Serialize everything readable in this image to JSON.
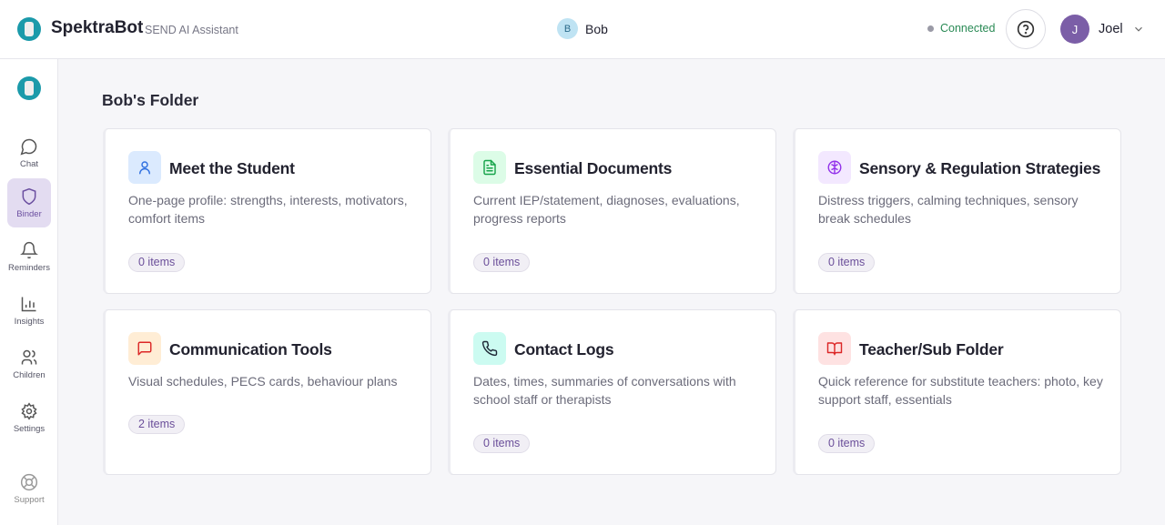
{
  "header": {
    "brand": "SpektraBot",
    "subtitle": "SEND AI Assistant",
    "student_initial": "B",
    "student_name": "Bob",
    "status": "Connected",
    "user_initial": "J",
    "user_name": "Joel"
  },
  "sidebar": {
    "items": [
      {
        "label": "Chat",
        "icon": "chat-icon"
      },
      {
        "label": "Binder",
        "icon": "shield-icon",
        "active": true
      },
      {
        "label": "Reminders",
        "icon": "bell-icon"
      },
      {
        "label": "Insights",
        "icon": "bar-chart-icon"
      },
      {
        "label": "Children",
        "icon": "users-icon"
      },
      {
        "label": "Settings",
        "icon": "gear-icon"
      },
      {
        "label": "Support",
        "icon": "lifebuoy-icon"
      }
    ]
  },
  "main": {
    "title": "Bob's Folder",
    "cards": [
      {
        "title": "Meet the Student",
        "desc": "One-page profile: strengths, interests, motivators, comfort items",
        "count": "0 items",
        "icon": "user-icon",
        "color": "#2f6fe0",
        "bg": "#dbeafe"
      },
      {
        "title": "Essential Documents",
        "desc": "Current IEP/statement, diagnoses, evaluations, progress reports",
        "count": "0 items",
        "icon": "document-icon",
        "color": "#16a34a",
        "bg": "#dcfce7"
      },
      {
        "title": "Sensory & Regulation Strategies",
        "desc": "Distress triggers, calming techniques, sensory break schedules",
        "count": "0 items",
        "icon": "brain-icon",
        "color": "#9333ea",
        "bg": "#f3e8ff"
      },
      {
        "title": "Communication Tools",
        "desc": "Visual schedules, PECS cards, behaviour plans",
        "count": "2 items",
        "icon": "message-icon",
        "color": "#dc2626",
        "bg": "#ffedd5"
      },
      {
        "title": "Contact Logs",
        "desc": "Dates, times, summaries of conversations with school staff or therapists",
        "count": "0 items",
        "icon": "phone-icon",
        "color": "#1f2937",
        "bg": "#ccfbf1"
      },
      {
        "title": "Teacher/Sub Folder",
        "desc": "Quick reference for substitute teachers: photo, key support staff, essentials",
        "count": "0 items",
        "icon": "book-icon",
        "color": "#dc2626",
        "bg": "#fee2e2"
      }
    ]
  }
}
